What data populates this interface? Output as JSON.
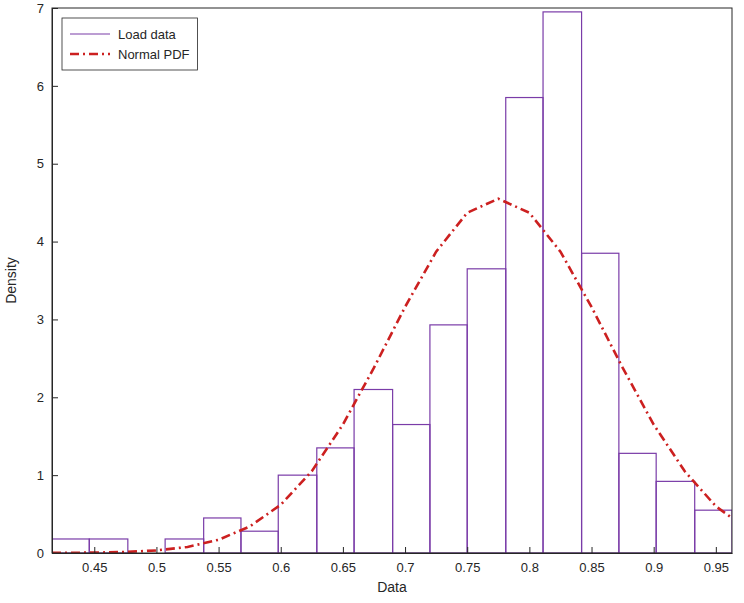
{
  "chart_data": {
    "type": "histogram",
    "x_label": "Data",
    "y_label": "Density",
    "xlim": [
      0.416,
      0.963
    ],
    "ylim": [
      0,
      7
    ],
    "xticks": [
      0.45,
      0.5,
      0.55,
      0.6,
      0.65,
      0.7,
      0.75,
      0.8,
      0.85,
      0.9,
      0.95
    ],
    "yticks": [
      0,
      1,
      2,
      3,
      4,
      5,
      6,
      7
    ],
    "legend": "upper left",
    "series": [
      {
        "name": "Load data",
        "type": "histogram",
        "color": "#7a3ca8",
        "bins": [
          0.416,
          0.446,
          0.477,
          0.507,
          0.538,
          0.568,
          0.598,
          0.629,
          0.659,
          0.69,
          0.72,
          0.75,
          0.781,
          0.811,
          0.842,
          0.872,
          0.902,
          0.933,
          0.963
        ],
        "values": [
          0.18,
          0.18,
          0,
          0.18,
          0.45,
          0.28,
          1.0,
          1.35,
          2.1,
          1.65,
          2.93,
          3.65,
          5.85,
          6.95,
          3.85,
          1.28,
          0.92,
          0.55
        ]
      },
      {
        "name": "Normal PDF",
        "type": "line",
        "color": "#cc2020",
        "line_style": "dashdot",
        "x": [
          0.416,
          0.45,
          0.475,
          0.5,
          0.525,
          0.55,
          0.575,
          0.6,
          0.625,
          0.65,
          0.675,
          0.7,
          0.725,
          0.75,
          0.775,
          0.8,
          0.825,
          0.85,
          0.875,
          0.9,
          0.925,
          0.95,
          0.963
        ],
        "values": [
          0.002,
          0.005,
          0.013,
          0.033,
          0.078,
          0.17,
          0.34,
          0.62,
          1.05,
          1.65,
          2.38,
          3.16,
          3.87,
          4.37,
          4.55,
          4.37,
          3.87,
          3.16,
          2.38,
          1.65,
          1.05,
          0.6,
          0.45
        ]
      }
    ]
  }
}
